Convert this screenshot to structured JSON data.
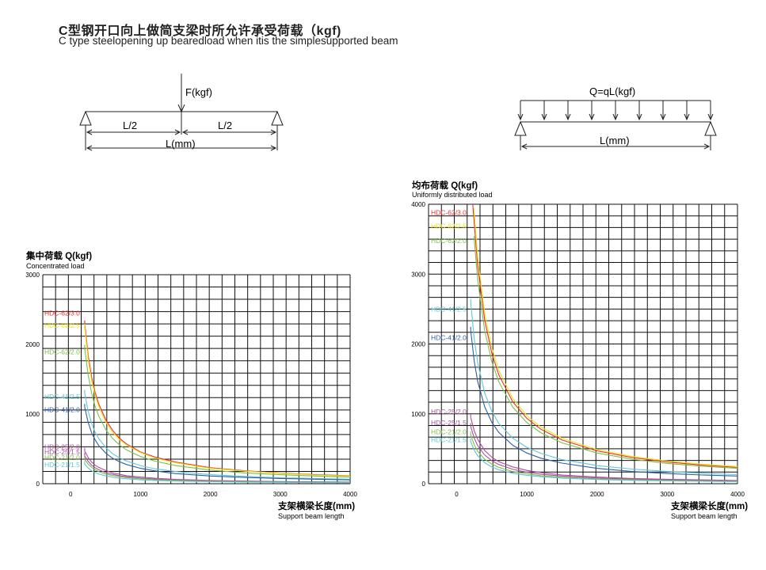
{
  "title_cn": "C型钢开口向上做简支梁时所允许承受荷载（kgf)",
  "title_en": "C type steelopening up bearedload when itis the simplesupported beam",
  "diagram_point": {
    "force_label": "F(kgf)",
    "half_span_left": "L/2",
    "half_span_right": "L/2",
    "span_label": "L(mm)"
  },
  "diagram_uniform": {
    "load_label": "Q=qL(kgf)",
    "span_label": "L(mm)"
  },
  "colors": {
    "red": "#e8322a",
    "yellow": "#ece51c",
    "green": "#7dbf4b",
    "cyan": "#5ec7d6",
    "blue": "#2f5ea8",
    "purple": "#a9509b",
    "grid": "#111111"
  },
  "chart_data": [
    {
      "type": "line",
      "title_cn": "集中荷载 Q(kgf)",
      "title_en": "Concentrated load",
      "xlabel_cn": "支架横梁长度(mm)",
      "xlabel_en": "Support beam length",
      "xlim": [
        -400,
        4000
      ],
      "ylim": [
        0,
        3000
      ],
      "xticks": [
        "0",
        "1000",
        "2000",
        "3000",
        "4000"
      ],
      "yticks": [
        "0",
        "1000",
        "2000",
        "3000"
      ],
      "grid": true,
      "series": [
        {
          "name": "HDC-62/3.0",
          "color": "red",
          "label_y": 2450,
          "x": [
            200,
            250,
            300,
            350,
            400,
            500,
            600,
            700,
            800,
            1000,
            1200,
            1500,
            2000,
            2500,
            3000,
            3500,
            4000
          ],
          "y": [
            2300,
            1840,
            1530,
            1310,
            1150,
            920,
            765,
            650,
            570,
            455,
            385,
            310,
            230,
            185,
            155,
            130,
            115
          ]
        },
        {
          "name": "HDC-62/2.5",
          "color": "yellow",
          "label_y": 2270,
          "x": [
            200,
            250,
            300,
            350,
            400,
            500,
            600,
            700,
            800,
            1000,
            1200,
            1500,
            2000,
            2500,
            3000,
            3500,
            4000
          ],
          "y": [
            2250,
            1780,
            1480,
            1270,
            1110,
            890,
            740,
            630,
            555,
            445,
            370,
            300,
            220,
            180,
            150,
            125,
            110
          ]
        },
        {
          "name": "HDC-62/2.0",
          "color": "green",
          "label_y": 1890,
          "x": [
            200,
            250,
            300,
            350,
            400,
            500,
            600,
            700,
            800,
            1000,
            1200,
            1500,
            2000,
            2500,
            3000,
            3500,
            4000
          ],
          "y": [
            1950,
            1560,
            1300,
            1110,
            975,
            780,
            650,
            555,
            485,
            390,
            325,
            260,
            195,
            155,
            130,
            110,
            95
          ]
        },
        {
          "name": "HDC-41/2.5",
          "color": "cyan",
          "label_y": 1250,
          "x": [
            200,
            250,
            300,
            350,
            400,
            500,
            600,
            700,
            800,
            1000,
            1200,
            1500,
            2000,
            2500,
            3000,
            3500,
            4000
          ],
          "y": [
            1300,
            1040,
            865,
            740,
            650,
            520,
            430,
            370,
            325,
            260,
            215,
            175,
            130,
            105,
            85,
            75,
            65
          ]
        },
        {
          "name": "HDC-41/2.0",
          "color": "blue",
          "label_y": 1060,
          "x": [
            200,
            250,
            300,
            350,
            400,
            500,
            600,
            700,
            800,
            1000,
            1200,
            1500,
            2000,
            2500,
            3000,
            3500,
            4000
          ],
          "y": [
            1100,
            880,
            730,
            630,
            550,
            440,
            365,
            315,
            275,
            220,
            185,
            145,
            110,
            90,
            75,
            65,
            55
          ]
        },
        {
          "name": "HDC-25/2.0",
          "color": "purple",
          "label_y": 530,
          "x": [
            200,
            250,
            300,
            350,
            400,
            500,
            600,
            700,
            800,
            1000,
            1200,
            1500,
            2000,
            2500,
            3000,
            3500,
            4000
          ],
          "y": [
            470,
            375,
            310,
            265,
            235,
            190,
            155,
            135,
            115,
            95,
            80,
            63,
            47,
            38,
            31,
            27,
            24
          ]
        },
        {
          "name": "HDC-25/1.5",
          "color": "purple",
          "label_y": 455,
          "x": [
            200,
            250,
            300,
            350,
            400,
            500,
            600,
            700,
            800,
            1000,
            1200,
            1500,
            2000,
            2500,
            3000,
            3500,
            4000
          ],
          "y": [
            400,
            320,
            265,
            230,
            200,
            160,
            135,
            115,
            100,
            80,
            67,
            53,
            40,
            32,
            27,
            23,
            20
          ]
        },
        {
          "name": "HDC-21/2.0",
          "color": "green",
          "label_y": 375,
          "x": [
            200,
            250,
            300,
            350,
            400,
            500,
            600,
            700,
            800,
            1000,
            1200,
            1500,
            2000,
            2500,
            3000,
            3500,
            4000
          ],
          "y": [
            350,
            280,
            235,
            200,
            175,
            140,
            117,
            100,
            88,
            70,
            58,
            47,
            35,
            28,
            23,
            20,
            18
          ]
        },
        {
          "name": "HDC-21/1.5",
          "color": "cyan",
          "label_y": 270,
          "x": [
            200,
            250,
            300,
            350,
            400,
            500,
            600,
            700,
            800,
            1000,
            1200,
            1500,
            2000,
            2500,
            3000,
            3500,
            4000
          ],
          "y": [
            280,
            225,
            185,
            160,
            140,
            112,
            93,
            80,
            70,
            56,
            47,
            37,
            28,
            22,
            19,
            16,
            14
          ]
        }
      ]
    },
    {
      "type": "line",
      "title_cn": "均布荷载 Q(kgf)",
      "title_en": "Uniformly distributed load",
      "xlabel_cn": "支架横梁长度(mm)",
      "xlabel_en": "Support beam length",
      "xlim": [
        -400,
        4000
      ],
      "ylim": [
        0,
        4000
      ],
      "xticks": [
        "0",
        "1000",
        "2000",
        "3000",
        "4000"
      ],
      "yticks": [
        "0",
        "1000",
        "2000",
        "3000",
        "4000"
      ],
      "grid": true,
      "series": [
        {
          "name": "HDC-62/3.0",
          "color": "red",
          "label_y": 3880,
          "x": [
            230,
            300,
            400,
            500,
            600,
            800,
            1000,
            1200,
            1500,
            2000,
            2500,
            3000,
            3500,
            4000
          ],
          "y": [
            4000,
            3120,
            2340,
            1870,
            1560,
            1170,
            935,
            780,
            625,
            470,
            375,
            310,
            265,
            235
          ]
        },
        {
          "name": "HDC-62/2.5",
          "color": "yellow",
          "label_y": 3690,
          "x": [
            250,
            300,
            400,
            500,
            600,
            800,
            1000,
            1200,
            1500,
            2000,
            2500,
            3000,
            3500,
            4000
          ],
          "y": [
            3900,
            3250,
            2440,
            1950,
            1625,
            1220,
            975,
            810,
            650,
            490,
            390,
            325,
            280,
            245
          ]
        },
        {
          "name": "HDC-62/2.0",
          "color": "green",
          "label_y": 3480,
          "x": [
            250,
            300,
            400,
            500,
            600,
            800,
            1000,
            1200,
            1500,
            2000,
            2500,
            3000,
            3500,
            4000
          ],
          "y": [
            3500,
            2920,
            2190,
            1750,
            1460,
            1095,
            875,
            730,
            585,
            440,
            350,
            290,
            250,
            220
          ]
        },
        {
          "name": "HDC-41/2.5",
          "color": "cyan",
          "label_y": 2500,
          "x": [
            200,
            250,
            300,
            400,
            500,
            600,
            800,
            1000,
            1200,
            1500,
            2000,
            2500,
            3000,
            3500,
            4000
          ],
          "y": [
            2600,
            2080,
            1730,
            1300,
            1040,
            865,
            650,
            520,
            435,
            345,
            260,
            210,
            175,
            150,
            130
          ]
        },
        {
          "name": "HDC-41/2.0",
          "color": "blue",
          "label_y": 2090,
          "x": [
            200,
            250,
            300,
            400,
            500,
            600,
            800,
            1000,
            1200,
            1500,
            2000,
            2500,
            3000,
            3500,
            4000
          ],
          "y": [
            2200,
            1760,
            1465,
            1100,
            880,
            735,
            550,
            440,
            365,
            295,
            220,
            175,
            145,
            125,
            110
          ]
        },
        {
          "name": "HDC-25/2.0",
          "color": "purple",
          "label_y": 1030,
          "x": [
            200,
            250,
            300,
            400,
            500,
            600,
            800,
            1000,
            1200,
            1500,
            2000,
            2500,
            3000,
            3500,
            4000
          ],
          "y": [
            950,
            760,
            635,
            475,
            380,
            315,
            240,
            190,
            160,
            125,
            95,
            75,
            63,
            54,
            47
          ]
        },
        {
          "name": "HDC-25/1.5",
          "color": "purple",
          "label_y": 870,
          "x": [
            200,
            250,
            300,
            400,
            500,
            600,
            800,
            1000,
            1200,
            1500,
            2000,
            2500,
            3000,
            3500,
            4000
          ],
          "y": [
            820,
            655,
            545,
            410,
            330,
            275,
            205,
            165,
            135,
            110,
            82,
            65,
            55,
            47,
            41
          ]
        },
        {
          "name": "HDC-21/2.0",
          "color": "green",
          "label_y": 740,
          "x": [
            200,
            250,
            300,
            400,
            500,
            600,
            800,
            1000,
            1200,
            1500,
            2000,
            2500,
            3000,
            3500,
            4000
          ],
          "y": [
            700,
            560,
            465,
            350,
            280,
            235,
            175,
            140,
            115,
            93,
            70,
            56,
            47,
            40,
            35
          ]
        },
        {
          "name": "HDC-21/1.5",
          "color": "cyan",
          "label_y": 630,
          "x": [
            200,
            250,
            300,
            400,
            500,
            600,
            800,
            1000,
            1200,
            1500,
            2000,
            2500,
            3000,
            3500,
            4000
          ],
          "y": [
            600,
            480,
            400,
            300,
            240,
            200,
            150,
            120,
            100,
            80,
            60,
            48,
            40,
            34,
            30
          ]
        }
      ]
    }
  ]
}
